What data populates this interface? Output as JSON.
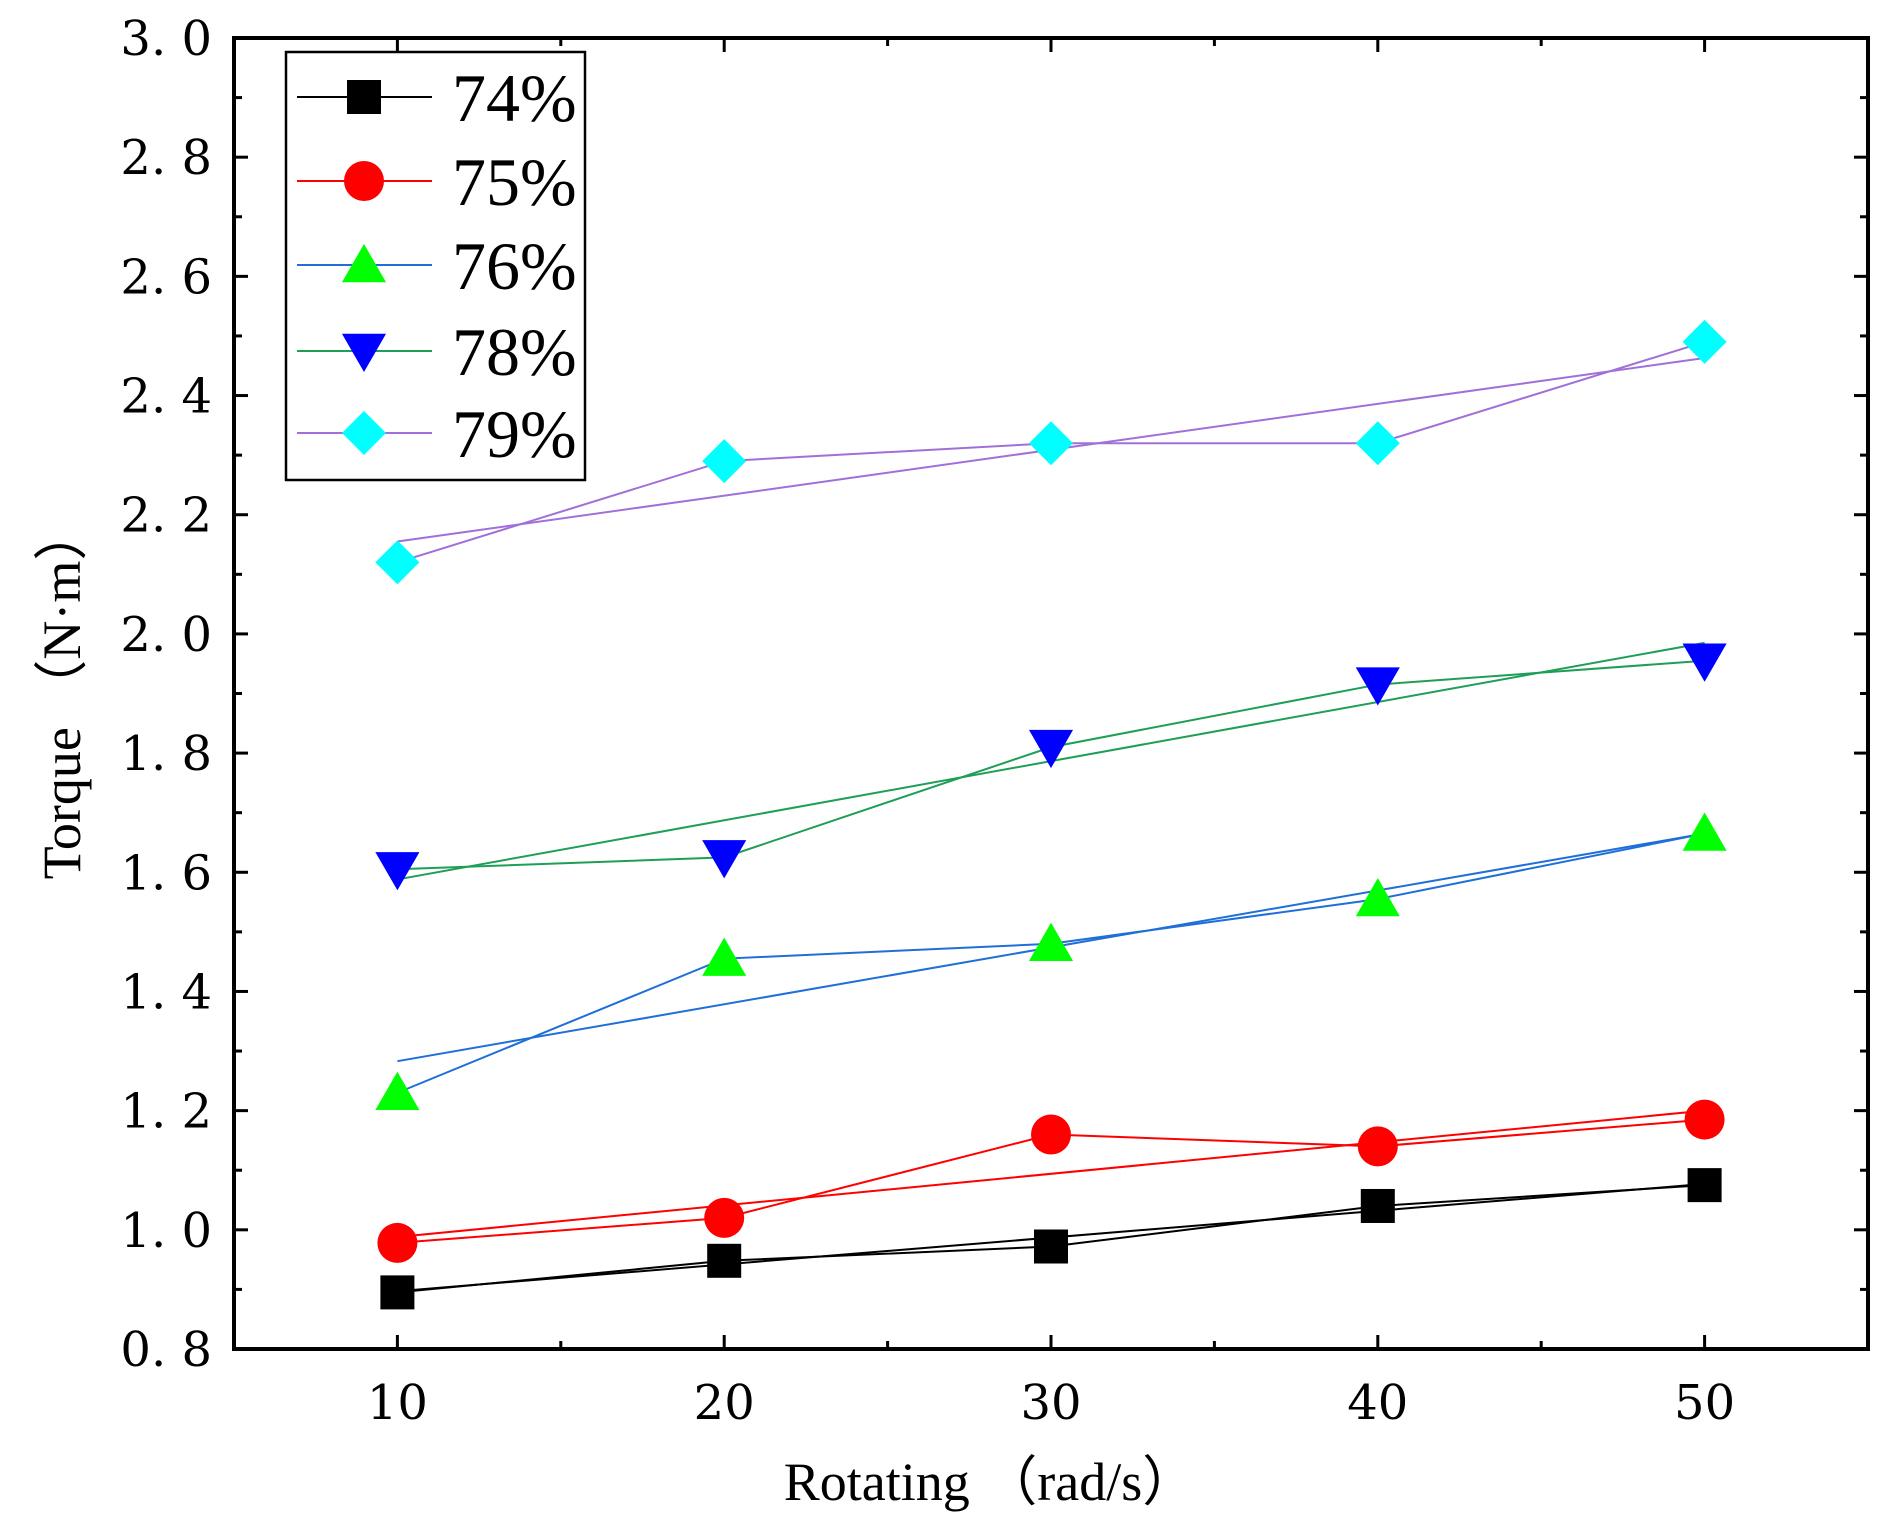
{
  "chart_data": {
    "type": "line",
    "title": "",
    "xlabel": "Rotating （rad/s）",
    "ylabel": "Torque （N·m）",
    "xlim": [
      5,
      55
    ],
    "ylim": [
      0.8,
      3.0
    ],
    "x_ticks": [
      10,
      20,
      30,
      40,
      50
    ],
    "x_tick_labels": [
      "10",
      "20",
      "30",
      "40",
      "50"
    ],
    "y_ticks": [
      0.8,
      1.0,
      1.2,
      1.4,
      1.6,
      1.8,
      2.0,
      2.2,
      2.4,
      2.6,
      2.8,
      3.0
    ],
    "y_tick_labels": [
      "0. 8",
      "1. 0",
      "1. 2",
      "1. 4",
      "1. 6",
      "1. 8",
      "2. 0",
      "2. 2",
      "2. 4",
      "2. 6",
      "2. 8",
      "3. 0"
    ],
    "grid": false,
    "legend_position": "top-left",
    "x": [
      10,
      20,
      30,
      40,
      50
    ],
    "series": [
      {
        "name": "74%",
        "marker": "square",
        "marker_color": "#000000",
        "line_color": "#000000",
        "values": [
          0.895,
          0.948,
          0.972,
          1.04,
          1.075
        ],
        "fit": [
          0.897,
          1.077
        ]
      },
      {
        "name": "75%",
        "marker": "circle",
        "marker_color": "#ff0000",
        "line_color": "#ff0000",
        "values": [
          0.978,
          1.02,
          1.16,
          1.14,
          1.185
        ],
        "fit": [
          0.988,
          1.2
        ]
      },
      {
        "name": "76%",
        "marker": "triangle-up",
        "marker_color": "#00ff00",
        "line_color": "#1f6fd8",
        "values": [
          1.23,
          1.455,
          1.48,
          1.555,
          1.665
        ],
        "fit": [
          1.283,
          1.665
        ]
      },
      {
        "name": "78%",
        "marker": "triangle-down",
        "marker_color": "#0000ff",
        "line_color": "#1e9e57",
        "values": [
          1.605,
          1.625,
          1.81,
          1.915,
          1.955
        ],
        "fit": [
          1.588,
          1.985
        ]
      },
      {
        "name": "79%",
        "marker": "diamond",
        "marker_color": "#00ffff",
        "line_color": "#a070d8",
        "values": [
          2.12,
          2.29,
          2.32,
          2.32,
          2.49
        ],
        "fit": [
          2.155,
          2.463
        ]
      }
    ]
  }
}
